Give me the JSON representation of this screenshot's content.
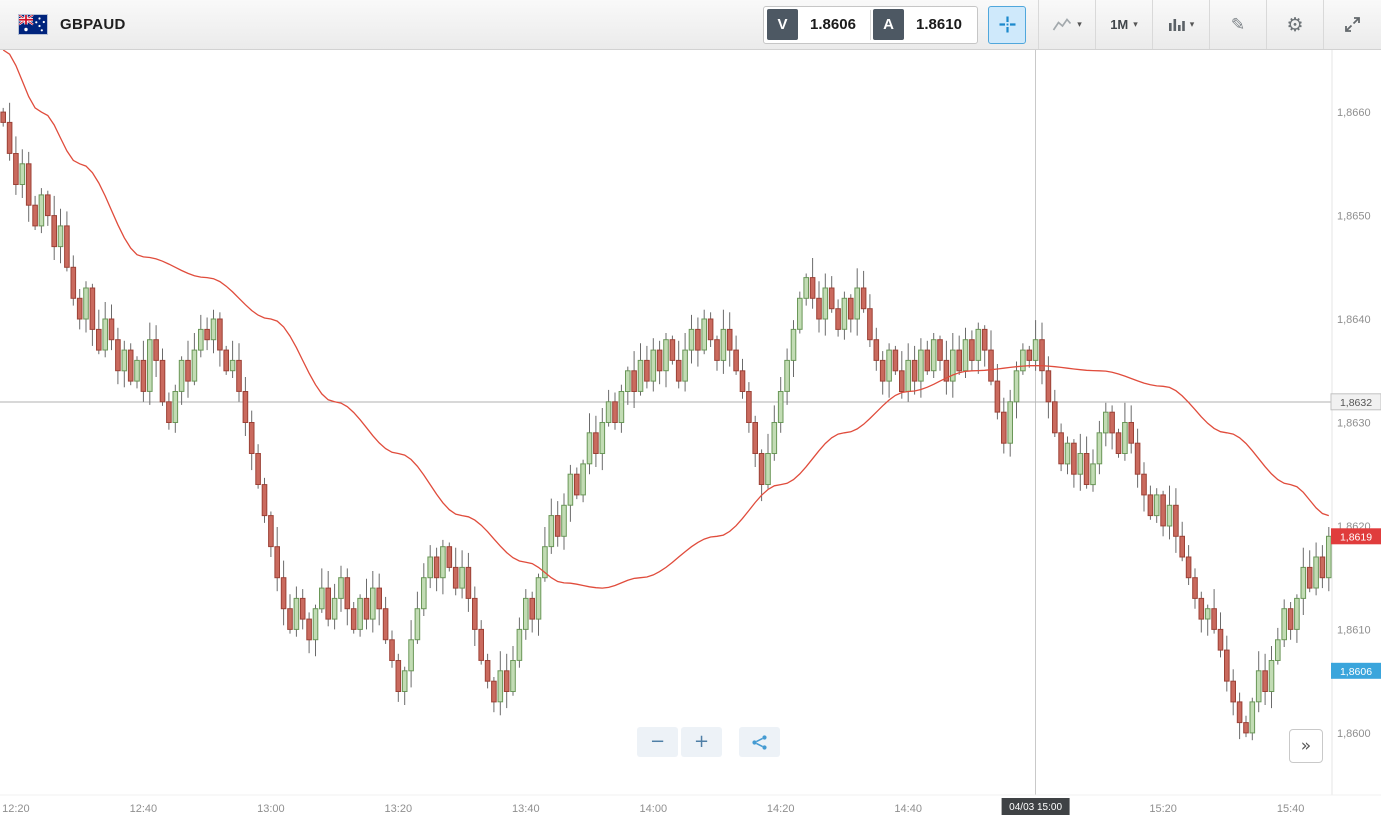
{
  "header": {
    "symbol": "GBPAUD",
    "sell_button": {
      "label": "V",
      "price": "1.8606"
    },
    "buy_button": {
      "label": "A",
      "price": "1.8610"
    },
    "timeframe": "1M"
  },
  "icons": {
    "caret": "▾",
    "pencil": "✎",
    "gear": "⚙",
    "zoom_out": "−",
    "zoom_in": "+",
    "collapse": "»"
  },
  "chart_data": {
    "type": "candlestick",
    "symbol": "GBPAUD",
    "interval": "1M",
    "price_base": 1.86,
    "price_scale": 0.0001,
    "x_range_minutes": [
      -0.5,
      208.5
    ],
    "y_range": [
      1.8594,
      1.8666
    ],
    "x_ticks": [
      {
        "minute": 2,
        "label": "12:20"
      },
      {
        "minute": 22,
        "label": "12:40"
      },
      {
        "minute": 42,
        "label": "13:00"
      },
      {
        "minute": 62,
        "label": "13:20"
      },
      {
        "minute": 82,
        "label": "13:40"
      },
      {
        "minute": 102,
        "label": "14:00"
      },
      {
        "minute": 122,
        "label": "14:20"
      },
      {
        "minute": 142,
        "label": "14:40"
      },
      {
        "minute": 162,
        "label": "15:00"
      },
      {
        "minute": 182,
        "label": "15:20"
      },
      {
        "minute": 202,
        "label": "15:40"
      }
    ],
    "y_ticks": [
      {
        "value": 1.866,
        "label": "1,8660"
      },
      {
        "value": 1.865,
        "label": "1,8650"
      },
      {
        "value": 1.864,
        "label": "1,8640"
      },
      {
        "value": 1.863,
        "label": "1,8630"
      },
      {
        "value": 1.862,
        "label": "1,8620"
      },
      {
        "value": 1.861,
        "label": "1,8610"
      },
      {
        "value": 1.86,
        "label": "1,8600"
      }
    ],
    "first_open_pips": 60,
    "close_pips": [
      59,
      56,
      53,
      55,
      51,
      49,
      52,
      50,
      47,
      49,
      45,
      42,
      40,
      43,
      39,
      37,
      40,
      38,
      35,
      37,
      34,
      36,
      33,
      38,
      36,
      32,
      30,
      33,
      36,
      34,
      37,
      39,
      38,
      40,
      37,
      35,
      36,
      33,
      30,
      27,
      24,
      21,
      18,
      15,
      12,
      10,
      13,
      11,
      9,
      12,
      14,
      11,
      13,
      15,
      12,
      10,
      13,
      11,
      14,
      12,
      9,
      7,
      4,
      6,
      9,
      12,
      15,
      17,
      15,
      18,
      16,
      14,
      16,
      13,
      10,
      7,
      5,
      3,
      6,
      4,
      7,
      10,
      13,
      11,
      15,
      18,
      21,
      19,
      22,
      25,
      23,
      26,
      29,
      27,
      30,
      32,
      30,
      33,
      35,
      33,
      36,
      34,
      37,
      35,
      38,
      36,
      34,
      37,
      39,
      37,
      40,
      38,
      36,
      39,
      37,
      35,
      33,
      30,
      27,
      24,
      27,
      30,
      33,
      36,
      39,
      42,
      44,
      42,
      40,
      43,
      41,
      39,
      42,
      40,
      43,
      41,
      38,
      36,
      34,
      37,
      35,
      33,
      36,
      34,
      37,
      35,
      38,
      36,
      34,
      37,
      35,
      38,
      36,
      39,
      37,
      34,
      31,
      28,
      32,
      35,
      37,
      36,
      38,
      35,
      32,
      29,
      26,
      28,
      25,
      27,
      24,
      26,
      29,
      31,
      29,
      27,
      30,
      28,
      25,
      23,
      21,
      23,
      20,
      22,
      19,
      17,
      15,
      13,
      11,
      12,
      10,
      8,
      5,
      3,
      1,
      0,
      3,
      6,
      4,
      7,
      9,
      12,
      10,
      13,
      16,
      14,
      17,
      15,
      19
    ],
    "ma_line": {
      "color": "#e04c3c",
      "points_pips": [
        [
          0,
          66
        ],
        [
          6,
          60
        ],
        [
          12,
          55
        ],
        [
          22,
          46
        ],
        [
          32,
          44
        ],
        [
          42,
          40
        ],
        [
          52,
          32
        ],
        [
          62,
          27
        ],
        [
          72,
          21
        ],
        [
          82,
          16.5
        ],
        [
          88,
          14.5
        ],
        [
          94,
          14
        ],
        [
          100,
          15
        ],
        [
          112,
          19
        ],
        [
          122,
          24
        ],
        [
          132,
          29
        ],
        [
          142,
          33
        ],
        [
          152,
          35
        ],
        [
          162,
          35.5
        ],
        [
          172,
          35
        ],
        [
          182,
          33.5
        ],
        [
          192,
          29
        ],
        [
          202,
          24
        ],
        [
          208,
          21
        ]
      ]
    },
    "reference_line": {
      "value": 1.8632,
      "label": "1,8632"
    },
    "price_markers": [
      {
        "id": "reference-price-label",
        "value": 1.8632,
        "label": "1,8632",
        "bg": "#f1f1f1",
        "border": "#c2c2c2",
        "text_color": "#555555"
      },
      {
        "id": "last-price-label",
        "value": 1.8619,
        "label": "1,8619",
        "bg": "#e03c3c",
        "border": "none",
        "text_color": "#ffffff"
      },
      {
        "id": "sell-price-label",
        "value": 1.8606,
        "label": "1,8606",
        "bg": "#3aa5dc",
        "border": "none",
        "text_color": "#ffffff"
      }
    ],
    "crosshair": {
      "minute": 162,
      "tooltip": "04/03 15:00"
    },
    "colors": {
      "up_fill": "#c2dcb4",
      "up_stroke": "#6a9758",
      "down_fill": "#ca6a5e",
      "down_stroke": "#9c4136",
      "wick": "#6b6b6b",
      "crosshair_line": "#c9c9c9",
      "ref_line": "#b0b0b0",
      "axis_text": "#8f8f8f",
      "axis_border": "#e4e4e4",
      "tooltip_bg": "#3f4245",
      "tooltip_text": "#ffffff"
    }
  }
}
